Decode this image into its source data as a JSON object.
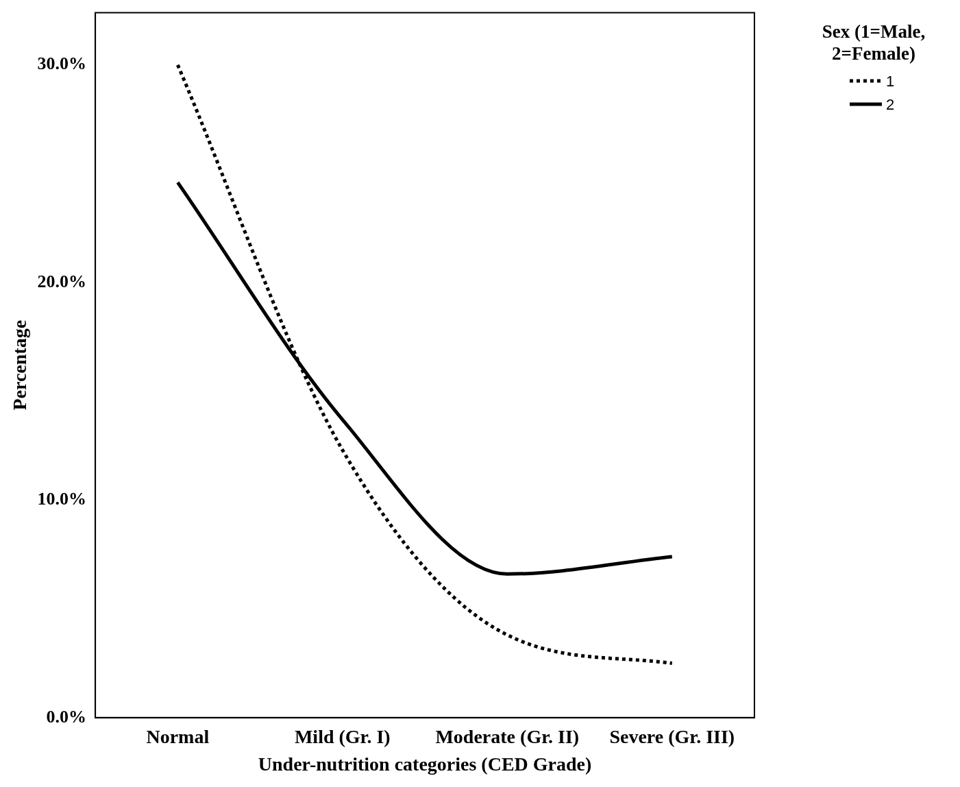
{
  "chart_data": {
    "type": "line",
    "xlabel": "Under-nutrition categories (CED Grade)",
    "ylabel": "Percentage",
    "legend_title": "Sex (1=Male, 2=Female)",
    "categories": [
      "Normal",
      "Mild (Gr. I)",
      "Moderate (Gr. II)",
      "Severe (Gr. III)"
    ],
    "series": [
      {
        "name": "1",
        "color": "#000000",
        "line_style": "dotted",
        "values": [
          30.0,
          12.3,
          3.8,
          2.5
        ]
      },
      {
        "name": "2",
        "color": "#000000",
        "line_style": "solid",
        "values": [
          24.6,
          13.7,
          6.6,
          7.4
        ]
      }
    ],
    "ylim": [
      0,
      32.4
    ],
    "yticks": [
      {
        "value": 0,
        "label": "0.0%"
      },
      {
        "value": 10,
        "label": "10.0%"
      },
      {
        "value": 20,
        "label": "20.0%"
      },
      {
        "value": 30,
        "label": "30.0%"
      }
    ],
    "grid": false,
    "legend": "top right",
    "marker": "none"
  }
}
